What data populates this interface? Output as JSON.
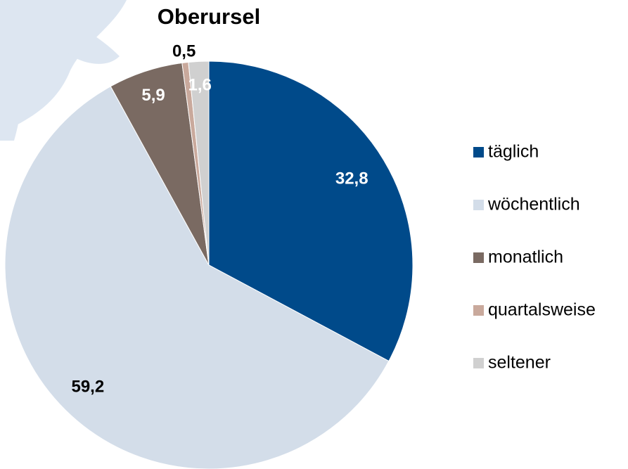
{
  "chart_data": {
    "type": "pie",
    "title": "Oberursel",
    "categories": [
      "täglich",
      "wöchentlich",
      "monatlich",
      "quartalsweise",
      "seltener"
    ],
    "values": [
      32.8,
      59.2,
      5.9,
      0.5,
      1.6
    ],
    "value_labels": [
      "32,8",
      "59,2",
      "5,9",
      "0,5",
      "1,6"
    ],
    "colors": [
      "#004a8a",
      "#d3dde9",
      "#7a6a62",
      "#c9a99c",
      "#d0d0d0"
    ],
    "legend": "right"
  }
}
